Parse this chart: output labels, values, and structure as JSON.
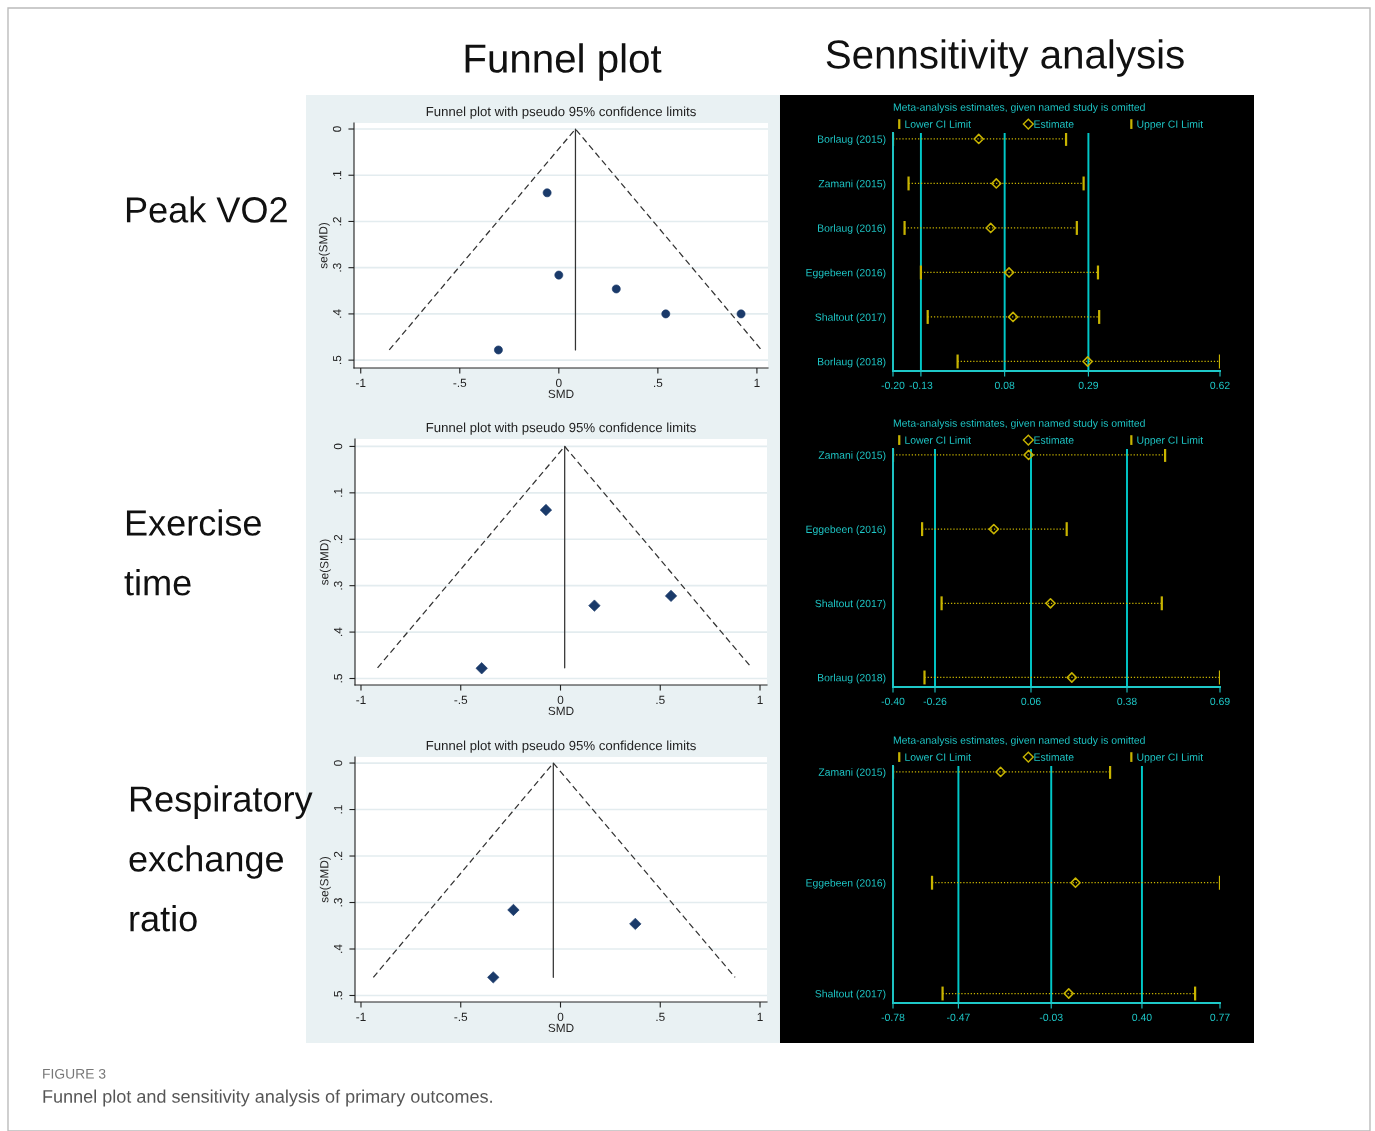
{
  "chart_data": [
    {
      "type": "scatter",
      "title": "Funnel plot with pseudo 95% confidence limits",
      "xlabel": "SMD",
      "ylabel": "se(SMD)",
      "grid": "y",
      "annotations": [
        "Funnel plot",
        "Peak VO2"
      ],
      "xlim": [
        -1.034,
        1.056
      ],
      "ylim": [
        0.517,
        -0.013
      ],
      "xticks": [
        -1,
        {
          "value": -0.5,
          "label": "-.5"
        },
        0,
        {
          "value": 0.5,
          "label": ".5"
        },
        1
      ],
      "yticks": [
        0,
        {
          "value": 0.1,
          "label": ".1"
        },
        {
          "value": 0.2,
          "label": ".2"
        },
        {
          "value": 0.3,
          "label": ".3"
        },
        {
          "value": 0.4,
          "label": ".4"
        },
        {
          "value": 0.5,
          "label": ".5"
        }
      ],
      "series": [
        {
          "type": "scatter",
          "color": "#1a3a6a",
          "marker": "circle",
          "x": [
            -0.059,
            0.0,
            0.29,
            0.54,
            0.92,
            -0.305
          ],
          "values": [
            0.138,
            0.316,
            0.346,
            0.4,
            0.4,
            0.478
          ]
        },
        {
          "type": "line",
          "color": "#333333",
          "line_style": "dashed",
          "x": [
            -0.856,
            0.084,
            1.023
          ],
          "values": [
            0.478,
            0,
            0.478
          ]
        },
        {
          "type": "line",
          "color": "#333333",
          "line_style": "solid",
          "x": [
            0.084,
            0.084
          ],
          "values": [
            0,
            0.478
          ]
        }
      ]
    },
    {
      "type": "scatter",
      "orientation": "horizontal",
      "title": "Meta-analysis estimates, given named study is omitted",
      "legend": "top",
      "line_style": "dotted",
      "annotations": [
        "Sennsitivity analysis",
        "Lower CI Limit",
        "Upper CI Limit"
      ],
      "categories": [
        "Borlaug (2015)",
        "Zamani (2015)",
        "Borlaug (2016)",
        "Eggebeen (2016)",
        "Shaltout (2017)",
        "Borlaug (2018)"
      ],
      "xlim": [
        -0.2,
        0.62
      ],
      "xticks": [
        {
          "value": -0.2,
          "label": "-0.20"
        },
        -0.13,
        0.08,
        0.29,
        0.62
      ],
      "ref_lines": [
        {
          "axis": "x",
          "value": -0.13,
          "color": "#00c8c8"
        },
        {
          "axis": "x",
          "value": 0.08,
          "color": "#00c8c8"
        },
        {
          "axis": "x",
          "value": 0.29,
          "color": "#00c8c8"
        }
      ],
      "series": [
        {
          "name": "Estimate",
          "color": "#c8b400",
          "marker": "diamond",
          "values": [
            0.015,
            0.059,
            0.045,
            0.091,
            0.101,
            0.288
          ],
          "errors": [
            [
              -0.2,
              0.234
            ],
            [
              -0.161,
              0.278
            ],
            [
              -0.171,
              0.261
            ],
            [
              -0.13,
              0.314
            ],
            [
              -0.113,
              0.317
            ],
            [
              -0.038,
              0.62
            ]
          ]
        }
      ]
    },
    {
      "type": "scatter",
      "title": "Funnel plot with pseudo 95% confidence limits",
      "xlabel": "SMD",
      "ylabel": "se(SMD)",
      "grid": "y",
      "annotations": [
        "Exercise\ntime"
      ],
      "xlim": [
        -1.03,
        1.035
      ],
      "ylim": [
        0.514,
        -0.016
      ],
      "xticks": [
        -1,
        {
          "value": -0.5,
          "label": "-.5"
        },
        0,
        {
          "value": 0.5,
          "label": ".5"
        },
        1
      ],
      "yticks": [
        0,
        {
          "value": 0.1,
          "label": ".1"
        },
        {
          "value": 0.2,
          "label": ".2"
        },
        {
          "value": 0.3,
          "label": ".3"
        },
        {
          "value": 0.4,
          "label": ".4"
        },
        {
          "value": 0.5,
          "label": ".5"
        }
      ],
      "series": [
        {
          "type": "scatter",
          "color": "#1a3a6a",
          "marker": "diamond",
          "x": [
            -0.073,
            0.17,
            0.554,
            -0.395
          ],
          "values": [
            0.137,
            0.343,
            0.322,
            0.478
          ]
        },
        {
          "type": "line",
          "color": "#333333",
          "line_style": "dashed",
          "x": [
            -0.917,
            0.021,
            0.958
          ],
          "values": [
            0.477,
            0,
            0.477
          ]
        },
        {
          "type": "line",
          "color": "#333333",
          "line_style": "solid",
          "x": [
            0.021,
            0.021
          ],
          "values": [
            0,
            0.477
          ]
        }
      ]
    },
    {
      "type": "scatter",
      "orientation": "horizontal",
      "title": "Meta-analysis estimates, given named study is omitted",
      "legend": "top",
      "line_style": "dotted",
      "annotations": [
        "Lower CI Limit",
        "Upper CI Limit"
      ],
      "categories": [
        "Zamani (2015)",
        "Eggebeen (2016)",
        "Shaltout (2017)",
        "Borlaug (2018)"
      ],
      "xlim": [
        -0.4,
        0.69
      ],
      "xticks": [
        {
          "value": -0.4,
          "label": "-0.40"
        },
        -0.26,
        0.06,
        0.38,
        0.69
      ],
      "ref_lines": [
        {
          "axis": "x",
          "value": -0.26,
          "color": "#00c8c8"
        },
        {
          "axis": "x",
          "value": 0.06,
          "color": "#00c8c8"
        },
        {
          "axis": "x",
          "value": 0.38,
          "color": "#00c8c8"
        }
      ],
      "series": [
        {
          "name": "Estimate",
          "color": "#c8b400",
          "marker": "diamond",
          "values": [
            0.052,
            -0.064,
            0.125,
            0.196
          ],
          "errors": [
            [
              -0.4,
              0.507
            ],
            [
              -0.303,
              0.179
            ],
            [
              -0.238,
              0.496
            ],
            [
              -0.295,
              0.69
            ]
          ]
        }
      ]
    },
    {
      "type": "scatter",
      "title": "Funnel plot with pseudo 95% confidence limits",
      "xlabel": "SMD",
      "ylabel": "se(SMD)",
      "grid": "y",
      "annotations": [
        "Respiratory\nexchange\nratio",
        "FIGURE 3",
        "Funnel plot and sensitivity analysis of primary outcomes."
      ],
      "xlim": [
        -1.03,
        1.035
      ],
      "ylim": [
        0.514,
        -0.013
      ],
      "xticks": [
        -1,
        {
          "value": -0.5,
          "label": "-.5"
        },
        0,
        {
          "value": 0.5,
          "label": ".5"
        },
        1
      ],
      "yticks": [
        0,
        {
          "value": 0.1,
          "label": ".1"
        },
        {
          "value": 0.2,
          "label": ".2"
        },
        {
          "value": 0.3,
          "label": ".3"
        },
        {
          "value": 0.4,
          "label": ".4"
        },
        {
          "value": 0.5,
          "label": ".5"
        }
      ],
      "series": [
        {
          "type": "scatter",
          "color": "#1a3a6a",
          "marker": "diamond",
          "x": [
            -0.236,
            0.375,
            -0.337
          ],
          "values": [
            0.316,
            0.346,
            0.461
          ]
        },
        {
          "type": "line",
          "color": "#333333",
          "line_style": "dashed",
          "x": [
            -0.938,
            -0.036,
            0.875
          ],
          "values": [
            0.461,
            0,
            0.461
          ]
        },
        {
          "type": "line",
          "color": "#333333",
          "line_style": "solid",
          "x": [
            -0.036,
            -0.036
          ],
          "values": [
            0,
            0.461
          ]
        }
      ]
    },
    {
      "type": "scatter",
      "orientation": "horizontal",
      "title": "Meta-analysis estimates, given named study is omitted",
      "legend": "top",
      "line_style": "dotted",
      "annotations": [
        "Lower CI Limit",
        "Upper CI Limit"
      ],
      "categories": [
        "Zamani (2015)",
        "Eggebeen (2016)",
        "Shaltout (2017)"
      ],
      "xlim": [
        -0.78,
        0.77
      ],
      "xticks": [
        -0.78,
        -0.47,
        -0.03,
        {
          "value": 0.4,
          "label": "0.40"
        },
        0.77
      ],
      "ref_lines": [
        {
          "axis": "x",
          "value": -0.47,
          "color": "#00c8c8"
        },
        {
          "axis": "x",
          "value": -0.03,
          "color": "#00c8c8"
        },
        {
          "axis": "x",
          "value": 0.4,
          "color": "#00c8c8"
        }
      ],
      "series": [
        {
          "name": "Estimate",
          "color": "#c8b400",
          "marker": "diamond",
          "values": [
            -0.27,
            0.085,
            0.053
          ],
          "errors": [
            [
              -0.78,
              0.249
            ],
            [
              -0.595,
              0.77
            ],
            [
              -0.545,
              0.652
            ]
          ]
        }
      ]
    }
  ]
}
